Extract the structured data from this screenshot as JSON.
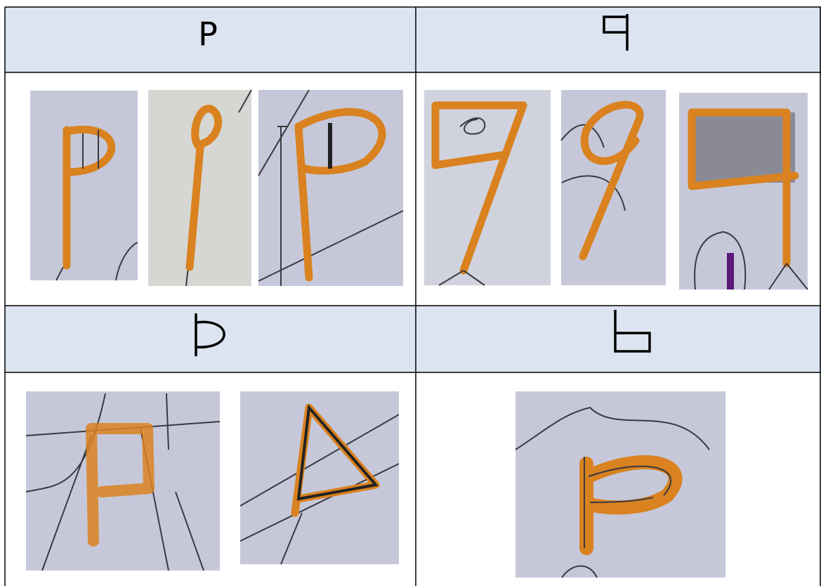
{
  "table": {
    "headers": [
      "P"
    ]
  }
}
